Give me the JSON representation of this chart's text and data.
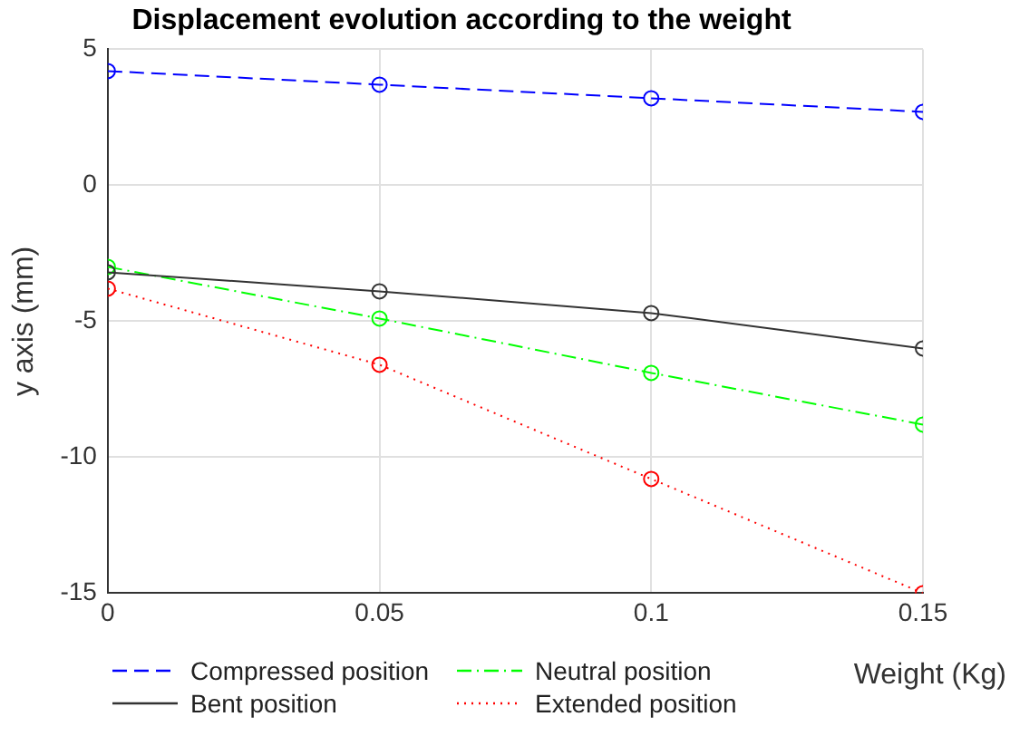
{
  "chart_data": {
    "type": "line",
    "title": "Displacement evolution according to the weight",
    "xlabel": "Weight (Kg)",
    "ylabel": "y axis (mm)",
    "x": [
      0,
      0.05,
      0.1,
      0.15
    ],
    "series": [
      {
        "name": "Compressed position",
        "color": "#0000ff",
        "line_style": "dashed",
        "values": [
          4.2,
          3.7,
          3.2,
          2.7
        ]
      },
      {
        "name": "Bent position",
        "color": "#333333",
        "line_style": "solid",
        "values": [
          -3.2,
          -3.9,
          -4.7,
          -6.0
        ]
      },
      {
        "name": "Neutral position",
        "color": "#00ff00",
        "line_style": "dashdot",
        "values": [
          -3.0,
          -4.9,
          -6.9,
          -8.8
        ]
      },
      {
        "name": "Extended position",
        "color": "#ff0000",
        "line_style": "dotted",
        "values": [
          -3.8,
          -6.6,
          -10.8,
          -15.0
        ]
      }
    ],
    "xlim": [
      0,
      0.15
    ],
    "xticks": [
      0,
      0.05,
      0.1,
      0.15
    ],
    "ylim": [
      -15,
      5
    ],
    "yticks": [
      -15,
      -10,
      -5,
      0,
      5
    ],
    "grid": true,
    "legend": "bottom",
    "marker": "circle"
  }
}
